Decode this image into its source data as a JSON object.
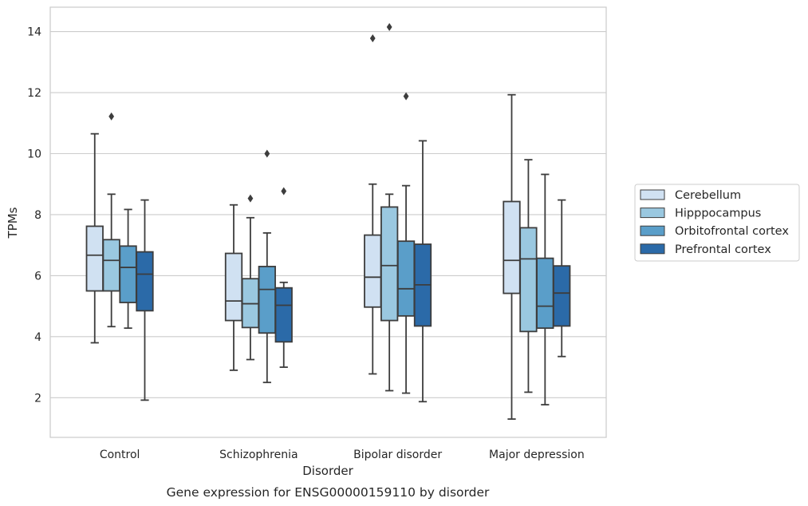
{
  "chart_data": {
    "type": "box",
    "title": "",
    "caption": "Gene expression for ENSG00000159110 by disorder",
    "xlabel": "Disorder",
    "ylabel": "TPMs",
    "ylim": [
      0.7,
      14.8
    ],
    "yticks": [
      2,
      4,
      6,
      8,
      10,
      12,
      14
    ],
    "grid": "horizontal",
    "legend_position": "right",
    "categories": [
      "Control",
      "Schizophrenia",
      "Bipolar disorder",
      "Major depression"
    ],
    "series": [
      {
        "name": "Cerebellum",
        "color": "#d0e1f2",
        "boxes": [
          {
            "whislo": 3.8,
            "q1": 5.5,
            "med": 6.67,
            "q3": 7.62,
            "whishi": 10.65,
            "fliers": []
          },
          {
            "whislo": 2.9,
            "q1": 4.53,
            "med": 5.17,
            "q3": 6.73,
            "whishi": 8.32,
            "fliers": []
          },
          {
            "whislo": 2.78,
            "q1": 4.97,
            "med": 5.95,
            "q3": 7.33,
            "whishi": 9.0,
            "fliers": [
              13.78
            ]
          },
          {
            "whislo": 1.3,
            "q1": 5.42,
            "med": 6.5,
            "q3": 8.43,
            "whishi": 11.93,
            "fliers": []
          }
        ]
      },
      {
        "name": "Hipppocampus",
        "color": "#9ac8e0",
        "boxes": [
          {
            "whislo": 4.33,
            "q1": 5.5,
            "med": 6.5,
            "q3": 7.18,
            "whishi": 8.67,
            "fliers": [
              11.22
            ]
          },
          {
            "whislo": 3.25,
            "q1": 4.3,
            "med": 5.08,
            "q3": 5.9,
            "whishi": 7.9,
            "fliers": [
              8.53
            ]
          },
          {
            "whislo": 2.23,
            "q1": 4.53,
            "med": 6.33,
            "q3": 8.25,
            "whishi": 8.67,
            "fliers": [
              14.15
            ]
          },
          {
            "whislo": 2.18,
            "q1": 4.17,
            "med": 6.55,
            "q3": 7.57,
            "whishi": 9.8,
            "fliers": []
          }
        ]
      },
      {
        "name": "Orbitofrontal cortex",
        "color": "#5a9ec9",
        "boxes": [
          {
            "whislo": 4.28,
            "q1": 5.12,
            "med": 6.27,
            "q3": 6.97,
            "whishi": 8.17,
            "fliers": []
          },
          {
            "whislo": 2.5,
            "q1": 4.12,
            "med": 5.55,
            "q3": 6.3,
            "whishi": 7.4,
            "fliers": [
              10.0
            ]
          },
          {
            "whislo": 2.15,
            "q1": 4.68,
            "med": 5.57,
            "q3": 7.13,
            "whishi": 8.95,
            "fliers": [
              11.88
            ]
          },
          {
            "whislo": 1.77,
            "q1": 4.28,
            "med": 5.0,
            "q3": 6.57,
            "whishi": 9.32,
            "fliers": []
          }
        ]
      },
      {
        "name": "Prefrontal cortex",
        "color": "#2b6aa8",
        "boxes": [
          {
            "whislo": 1.92,
            "q1": 4.85,
            "med": 6.05,
            "q3": 6.78,
            "whishi": 8.48,
            "fliers": []
          },
          {
            "whislo": 3.0,
            "q1": 3.83,
            "med": 5.03,
            "q3": 5.6,
            "whishi": 5.78,
            "fliers": [
              8.77
            ]
          },
          {
            "whislo": 1.87,
            "q1": 4.35,
            "med": 5.7,
            "q3": 7.03,
            "whishi": 10.42,
            "fliers": []
          },
          {
            "whislo": 3.35,
            "q1": 4.35,
            "med": 5.43,
            "q3": 6.32,
            "whishi": 8.48,
            "fliers": []
          }
        ]
      }
    ]
  }
}
